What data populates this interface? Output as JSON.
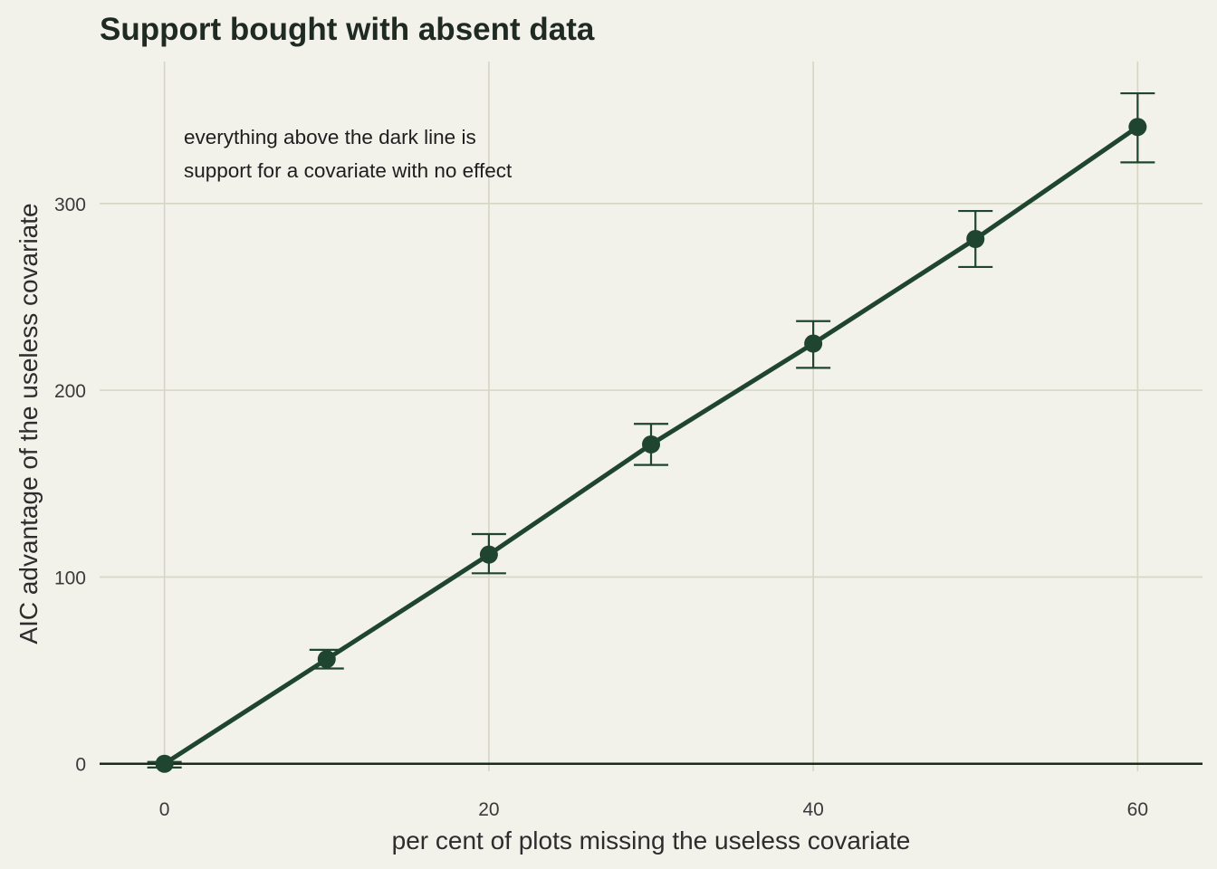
{
  "chart_data": {
    "type": "line",
    "title": "Support bought with absent data",
    "xlabel": "per cent of plots missing the useless covariate",
    "ylabel": "AIC advantage of the useless covariate",
    "xlim": [
      -4,
      64
    ],
    "ylim": [
      -4,
      376
    ],
    "x_ticks": [
      0,
      20,
      40,
      60
    ],
    "y_ticks": [
      0,
      100,
      200,
      300
    ],
    "x_tick_labels": [
      "0",
      "20",
      "40",
      "60"
    ],
    "y_tick_labels": [
      "0",
      "100",
      "200",
      "300"
    ],
    "grid": true,
    "reference_line": 0,
    "annotation": [
      "everything above the dark line is",
      "support for a covariate with no effect"
    ],
    "series": [
      {
        "x": [
          0,
          10,
          20,
          30,
          40,
          50,
          60
        ],
        "y": [
          0,
          56,
          112,
          171,
          225,
          281,
          341
        ],
        "error_low": [
          -2,
          51,
          102,
          160,
          212,
          266,
          322
        ],
        "error_high": [
          1,
          61,
          123,
          182,
          237,
          296,
          359
        ]
      }
    ],
    "colors": {
      "line": "#1f4530",
      "reference_line": "#1a2a1f",
      "grid": "#d6d6c4",
      "background": "#f2f1ea"
    }
  }
}
